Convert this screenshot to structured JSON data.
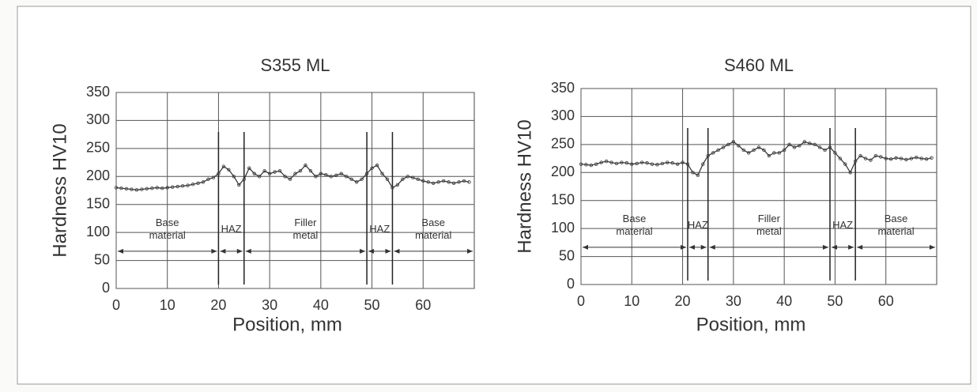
{
  "chart_data": [
    {
      "type": "line",
      "title": "S355 ML",
      "x_label": "Position, mm",
      "y_label": "Hardness HV10",
      "x": [
        0,
        1,
        2,
        3,
        4,
        5,
        6,
        7,
        8,
        9,
        10,
        11,
        12,
        13,
        14,
        15,
        16,
        17,
        18,
        19,
        20,
        21,
        22,
        23,
        24,
        25,
        26,
        27,
        28,
        29,
        30,
        31,
        32,
        33,
        34,
        35,
        36,
        37,
        38,
        39,
        40,
        41,
        42,
        43,
        44,
        45,
        46,
        47,
        48,
        49,
        50,
        51,
        52,
        53,
        54,
        55,
        56,
        57,
        58,
        59,
        60,
        61,
        62,
        63,
        64,
        65,
        66,
        67,
        68,
        69
      ],
      "series": [
        {
          "color": "#3a3a3a",
          "values": [
            180,
            179,
            178,
            177,
            176,
            177,
            178,
            179,
            180,
            179,
            180,
            181,
            182,
            183,
            184,
            186,
            188,
            190,
            195,
            198,
            205,
            218,
            212,
            200,
            185,
            195,
            215,
            205,
            200,
            210,
            205,
            208,
            210,
            200,
            195,
            205,
            210,
            220,
            210,
            200,
            205,
            203,
            200,
            202,
            205,
            200,
            195,
            190,
            195,
            205,
            215,
            220,
            205,
            195,
            180,
            185,
            195,
            200,
            198,
            195,
            192,
            190,
            188,
            190,
            192,
            190,
            188,
            190,
            192,
            190
          ]
        }
      ],
      "xlim": [
        0,
        70
      ],
      "xticks": [
        0,
        10,
        20,
        30,
        40,
        50,
        60
      ],
      "ylim": [
        0,
        350
      ],
      "yticks": [
        0,
        50,
        100,
        150,
        200,
        250,
        300,
        350
      ],
      "grid": true,
      "zones": [
        {
          "label": [
            "Base",
            "material"
          ],
          "from": 0,
          "to": 20
        },
        {
          "label": [
            "HAZ"
          ],
          "from": 20,
          "to": 25
        },
        {
          "label": [
            "Filler",
            "metal"
          ],
          "from": 25,
          "to": 49
        },
        {
          "label": [
            "HAZ"
          ],
          "from": 49,
          "to": 54
        },
        {
          "label": [
            "Base",
            "material"
          ],
          "from": 54,
          "to": 70
        }
      ]
    },
    {
      "type": "line",
      "title": "S460 ML",
      "x_label": "Position, mm",
      "y_label": "Hardness HV10",
      "x": [
        0,
        1,
        2,
        3,
        4,
        5,
        6,
        7,
        8,
        9,
        10,
        11,
        12,
        13,
        14,
        15,
        16,
        17,
        18,
        19,
        20,
        21,
        22,
        23,
        24,
        25,
        26,
        27,
        28,
        29,
        30,
        31,
        32,
        33,
        34,
        35,
        36,
        37,
        38,
        39,
        40,
        41,
        42,
        43,
        44,
        45,
        46,
        47,
        48,
        49,
        50,
        51,
        52,
        53,
        54,
        55,
        56,
        57,
        58,
        59,
        60,
        61,
        62,
        63,
        64,
        65,
        66,
        67,
        68,
        69
      ],
      "series": [
        {
          "color": "#3a3a3a",
          "values": [
            215,
            214,
            213,
            215,
            218,
            220,
            218,
            216,
            218,
            217,
            215,
            216,
            218,
            217,
            215,
            214,
            216,
            218,
            217,
            215,
            218,
            215,
            200,
            195,
            215,
            230,
            235,
            240,
            245,
            250,
            255,
            248,
            240,
            235,
            240,
            245,
            240,
            230,
            235,
            235,
            240,
            250,
            245,
            248,
            255,
            252,
            250,
            245,
            240,
            245,
            235,
            225,
            215,
            200,
            220,
            230,
            225,
            222,
            230,
            228,
            225,
            224,
            226,
            225,
            223,
            225,
            227,
            225,
            224,
            226
          ]
        }
      ],
      "xlim": [
        0,
        70
      ],
      "xticks": [
        0,
        10,
        20,
        30,
        40,
        50,
        60
      ],
      "ylim": [
        0,
        350
      ],
      "yticks": [
        0,
        50,
        100,
        150,
        200,
        250,
        300,
        350
      ],
      "grid": true,
      "zones": [
        {
          "label": [
            "Base",
            "material"
          ],
          "from": 0,
          "to": 21
        },
        {
          "label": [
            "HAZ"
          ],
          "from": 21,
          "to": 25
        },
        {
          "label": [
            "Filler",
            "metal"
          ],
          "from": 25,
          "to": 49
        },
        {
          "label": [
            "HAZ"
          ],
          "from": 49,
          "to": 54
        },
        {
          "label": [
            "Base",
            "material"
          ],
          "from": 54,
          "to": 70
        }
      ]
    }
  ]
}
